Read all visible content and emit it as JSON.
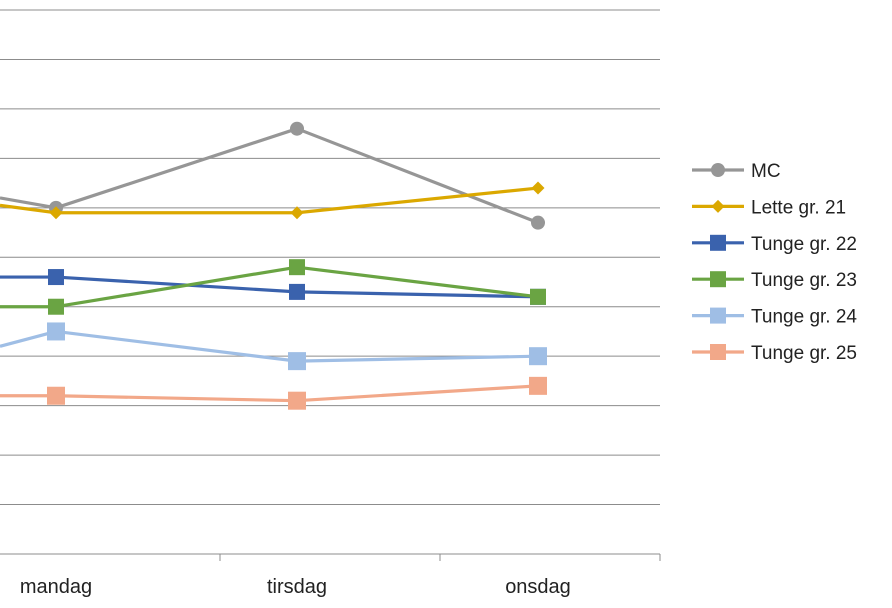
{
  "chart_data": {
    "type": "line",
    "categories": [
      "mandag",
      "tirsdag",
      "onsdag"
    ],
    "ylim": [
      0,
      11
    ],
    "grid": true,
    "legend_position": "right",
    "series": [
      {
        "name": "MC",
        "color": "#969696",
        "marker": "circle",
        "entry": 7.2,
        "values": [
          7.0,
          8.6,
          6.7
        ]
      },
      {
        "name": "Lette gr. 21",
        "color": "#dba800",
        "marker": "diamond",
        "entry": 7.05,
        "values": [
          6.9,
          6.9,
          7.4
        ]
      },
      {
        "name": "Tunge gr. 22",
        "color": "#3a62ad",
        "marker": "square",
        "entry": 5.6,
        "values": [
          5.6,
          5.3,
          5.2
        ]
      },
      {
        "name": "Tunge gr. 23",
        "color": "#6aa443",
        "marker": "square",
        "entry": 5.0,
        "values": [
          5.0,
          5.8,
          5.2
        ]
      },
      {
        "name": "Tunge gr. 24",
        "color": "#9fbee5",
        "marker": "square",
        "entry": 4.2,
        "values": [
          4.5,
          3.9,
          4.0
        ]
      },
      {
        "name": "Tunge gr. 25",
        "color": "#f2a889",
        "marker": "square",
        "entry": 3.2,
        "values": [
          3.2,
          3.1,
          3.4
        ]
      }
    ]
  }
}
